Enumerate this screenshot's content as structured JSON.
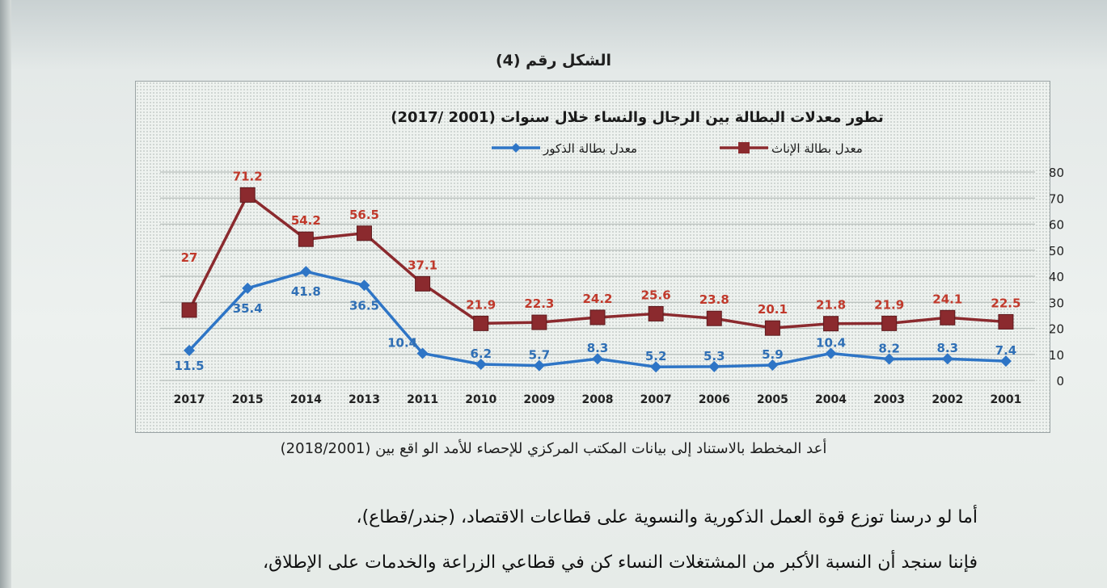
{
  "figure_label": "الشكل رقم (4)",
  "source_note": "أعد المخطط بالاستناد إلى بيانات المكتب المركزي للإحصاء للأمد الو اقع بين (2018/2001)",
  "body_text": [
    "أما لو درسنا توزع قوة العمل الذكورية والنسوية على قطاعات الاقتصاد، (جندر/قطاع)،",
    "فإننا سنجد أن النسبة الأكبر من المشتغلات النساء كن في قطاعي الزراعة والخدمات على الإطلاق،"
  ],
  "colors": {
    "female": "#8b2a2e",
    "male": "#2e75c6",
    "female_label": "#c0392b",
    "male_label": "#2f6fb5",
    "grid": "#b8bfbc"
  },
  "chart_data": {
    "type": "line",
    "title": "تطور معدلات البطالة بين الرجال والنساء خلال سنوات (2001 /2017)",
    "categories": [
      "2017",
      "2015",
      "2014",
      "2013",
      "2011",
      "2010",
      "2009",
      "2008",
      "2007",
      "2006",
      "2005",
      "2004",
      "2003",
      "2002",
      "2001"
    ],
    "series": [
      {
        "name": "معدل بطالة الإناث",
        "color": "#8b2a2e",
        "marker": "square",
        "values": [
          27,
          71.2,
          54.2,
          56.5,
          37.1,
          21.9,
          22.3,
          24.2,
          25.6,
          23.8,
          20.1,
          21.8,
          21.9,
          24.1,
          22.5
        ]
      },
      {
        "name": "معدل بطالة الذكور",
        "color": "#2e75c6",
        "marker": "diamond",
        "values": [
          11.5,
          35.4,
          41.8,
          36.5,
          10.4,
          6.2,
          5.7,
          8.3,
          5.2,
          5.3,
          5.9,
          10.4,
          8.2,
          8.3,
          7.4
        ]
      }
    ],
    "ylim": [
      0,
      80
    ],
    "yticks": [
      0,
      10,
      20,
      30,
      40,
      50,
      60,
      70,
      80
    ],
    "grid": true,
    "legend_position": "top-center",
    "y_axis_side": "right"
  }
}
